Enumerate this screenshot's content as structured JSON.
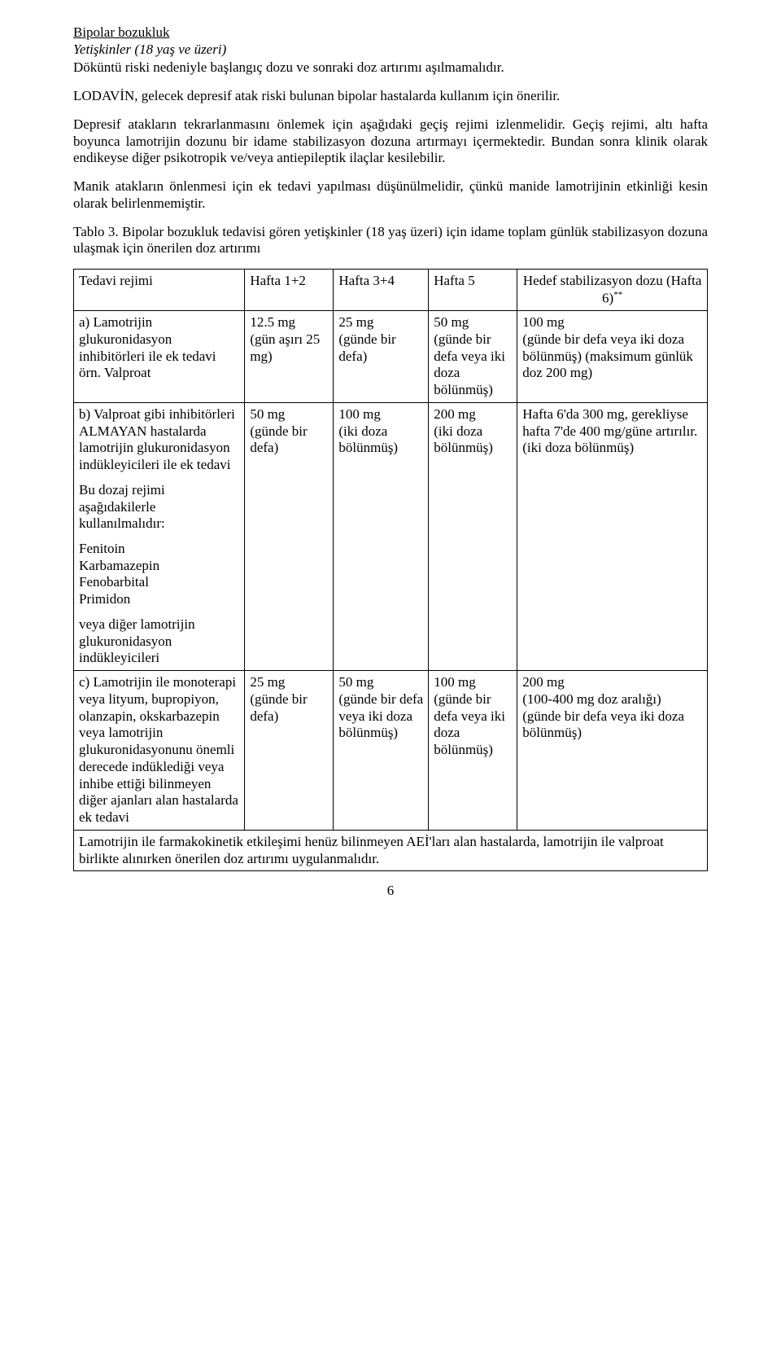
{
  "header": {
    "title": "Bipolar bozukluk",
    "subtitle": "Yetişkinler (18 yaş ve üzeri)",
    "intro1": "Döküntü riski nedeniyle başlangıç dozu ve sonraki doz artırımı aşılmamalıdır.",
    "intro2": "LODAVİN, gelecek depresif atak riski bulunan bipolar hastalarda kullanım için önerilir.",
    "intro3": "Depresif atakların tekrarlanmasını önlemek için aşağıdaki geçiş rejimi izlenmelidir. Geçiş rejimi, altı hafta boyunca lamotrijin dozunu bir idame stabilizasyon dozuna artırmayı içermektedir. Bundan sonra klinik olarak endikeyse diğer psikotropik ve/veya antiepileptik ilaçlar kesilebilir.",
    "intro4": "Manik atakların önlenmesi için ek tedavi yapılması düşünülmelidir, çünkü manide lamotrijinin etkinliği kesin olarak belirlenmemiştir."
  },
  "table": {
    "caption": "Tablo 3. Bipolar bozukluk tedavisi gören yetişkinler (18 yaş üzeri) için idame toplam günlük stabilizasyon dozuna ulaşmak için önerilen doz artırımı",
    "headers": {
      "regimen": "Tedavi rejimi",
      "w12": "Hafta 1+2",
      "w34": "Hafta   3+4",
      "w5": "Hafta 5",
      "goal": "Hedef stabilizasyon dozu (Hafta 6)",
      "goal_sup": "**"
    },
    "rows": {
      "a": {
        "label": "a) Lamotrijin glukuronidasyon inhibitörleri ile ek tedavi örn. Valproat",
        "w12_a": "12.5 mg",
        "w12_b": "(gün aşırı 25 mg)",
        "w34_a": "25 mg",
        "w34_b": "(günde bir defa)",
        "w5_a": "50 mg",
        "w5_b": "(günde bir defa veya iki doza bölünmüş)",
        "goal_a": "100 mg",
        "goal_b": "(günde bir defa veya iki doza bölünmüş) (maksimum günlük doz 200 mg)"
      },
      "b": {
        "label_main": "b) Valproat gibi inhibitörleri ALMAYAN hastalarda lamotrijin glukuronidasyon indükleyicileri ile ek tedavi",
        "label_sub1": "Bu dozaj rejimi aşağıdakilerle kullanılmalıdır:",
        "label_list": "Fenitoin\nKarbamazepin\nFenobarbital\nPrimidon",
        "label_sub2": "veya diğer lamotrijin glukuronidasyon indükleyicileri",
        "w12_a": "50 mg",
        "w12_b": "(günde bir defa)",
        "w34_a": "100 mg",
        "w34_b": "(iki doza bölünmüş)",
        "w5_a": "200 mg",
        "w5_b": "(iki doza bölünmüş)",
        "goal_a": "Hafta 6'da 300 mg, gerekliyse hafta 7'de 400 mg/güne artırılır.",
        "goal_b": "(iki doza bölünmüş)"
      },
      "c": {
        "label": "c) Lamotrijin ile monoterapi veya lityum, bupropiyon, olanzapin, okskarbazepin veya lamotrijin glukuronidasyonunu önemli derecede indüklediği veya inhibe ettiği bilinmeyen diğer ajanları alan hastalarda ek tedavi",
        "w12_a": "25 mg",
        "w12_b": "(günde bir defa)",
        "w34_a": "50 mg",
        "w34_b": "(günde bir defa veya iki doza bölünmüş)",
        "w5_a": "100 mg",
        "w5_b": "(günde bir defa veya iki doza bölünmüş)",
        "goal_a": "200 mg",
        "goal_b": "(100-400 mg  doz aralığı)",
        "goal_c": "(günde bir defa veya iki doza bölünmüş)"
      },
      "footer": "Lamotrijin ile farmakokinetik etkileşimi henüz bilinmeyen AEİ'ları alan hastalarda, lamotrijin ile valproat birlikte alınırken önerilen doz artırımı uygulanmalıdır."
    }
  },
  "page_number": "6"
}
